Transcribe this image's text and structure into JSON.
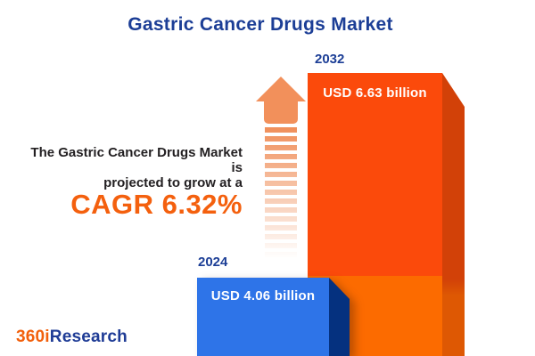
{
  "title": "Gastric Cancer Drugs Market",
  "promo": {
    "line1": "The Gastric Cancer Drugs Market is",
    "line2": "projected to grow at a",
    "cagr": "CAGR 6.32%"
  },
  "bars": [
    {
      "year": "2024",
      "label": "USD 4.06 billion",
      "value_billion_usd": 4.06,
      "front_color": "#2E74E8",
      "side_color": "#05317F"
    },
    {
      "year": "2032",
      "label": "USD 6.63 billion",
      "value_billion_usd": 6.63,
      "front_color": "#FB4A0B",
      "side_color": "#D24108"
    }
  ],
  "logo": {
    "part1": "360i",
    "part2": "Research"
  },
  "colors": {
    "title_blue": "#1C3E96",
    "text_dark": "#232022",
    "accent_orange": "#F4600E",
    "arrow_orange": "#F2905B",
    "bar_orange_lower": "#FC6B00"
  },
  "chart_data": {
    "type": "bar",
    "categories": [
      "2024",
      "2032"
    ],
    "values": [
      4.06,
      6.63
    ],
    "unit": "USD billion",
    "data_labels": [
      "USD 4.06 billion",
      "USD 6.63 billion"
    ],
    "title": "Gastric Cancer Drugs Market",
    "annotation": "The Gastric Cancer Drugs Market is projected to grow at a CAGR 6.32%",
    "cagr_percent": 6.32,
    "bar_colors": [
      "#2E74E8",
      "#FB4A0B"
    ],
    "legend": "off",
    "grid": "off",
    "axes": "none (pictorial 3D bar infographic, heights stylized)"
  }
}
